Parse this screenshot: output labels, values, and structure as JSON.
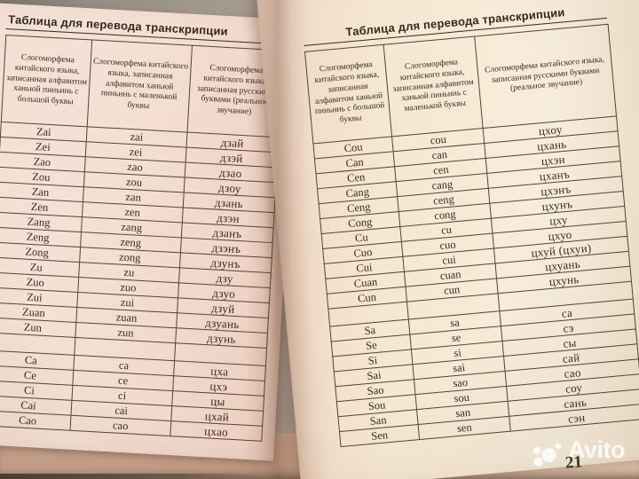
{
  "watermark": {
    "brand": "Avito"
  },
  "page_number": "21",
  "left_page": {
    "title": "Таблица для перевода транскрипции",
    "columns": [
      "Слогоморфема китайского языка, записанная алфавитом ханьюй пиньинь с большой буквы",
      "Слогоморфема китайского языка, записанная алфавитом ханьюй пиньинь с маленькой буквы",
      "Слогоморфема китайского языка, записанная русскими буквами (реальное звучание)"
    ],
    "rows": [
      [
        "Zai",
        "zai",
        "дзай"
      ],
      [
        "Zei",
        "zei",
        "дзэй"
      ],
      [
        "Zao",
        "zao",
        "дзао"
      ],
      [
        "Zou",
        "zou",
        "дзоу"
      ],
      [
        "Zan",
        "zan",
        "дзань"
      ],
      [
        "Zen",
        "zen",
        "дзэн"
      ],
      [
        "Zang",
        "zang",
        "дзанъ"
      ],
      [
        "Zeng",
        "zeng",
        "дзэнъ"
      ],
      [
        "Zong",
        "zong",
        "дзунъ"
      ],
      [
        "Zu",
        "zu",
        "дзу"
      ],
      [
        "Zuo",
        "zuo",
        "дзуо"
      ],
      [
        "Zui",
        "zui",
        "дзуй"
      ],
      [
        "Zuan",
        "zuan",
        "дзуань"
      ],
      [
        "Zun",
        "zun",
        "дзунь"
      ],
      [
        "",
        "",
        ""
      ],
      [
        "Ca",
        "ca",
        "цха"
      ],
      [
        "Ce",
        "ce",
        "цхэ"
      ],
      [
        "Ci",
        "ci",
        "цы"
      ],
      [
        "Cai",
        "cai",
        "цхай"
      ],
      [
        "Cao",
        "cao",
        "цхао"
      ]
    ]
  },
  "right_page": {
    "title": "Таблица для перевода транскрипции",
    "columns": [
      "Слогоморфема китайского языка, записанная алфавитом ханьюй пиньинь с большой буквы",
      "Слогоморфема китайского языка, записанная алфавитом ханьюй пиньинь с маленькой буквы",
      "Слогоморфема китайского языка, записанная русскими буквами (реальное звучание)"
    ],
    "rows": [
      [
        "Cou",
        "cou",
        "цхоу"
      ],
      [
        "Can",
        "can",
        "цхань"
      ],
      [
        "Cen",
        "cen",
        "цхэн"
      ],
      [
        "Cang",
        "cang",
        "цханъ"
      ],
      [
        "Ceng",
        "ceng",
        "цхэнъ"
      ],
      [
        "Cong",
        "cong",
        "цхунъ"
      ],
      [
        "Cu",
        "cu",
        "цху"
      ],
      [
        "Cuo",
        "cuo",
        "цхуо"
      ],
      [
        "Cui",
        "cui",
        "цхуй (цхуи)"
      ],
      [
        "Cuan",
        "cuan",
        "цхуань"
      ],
      [
        "Cun",
        "cun",
        "цхунь"
      ],
      [
        "",
        "",
        ""
      ],
      [
        "Sa",
        "sa",
        "са"
      ],
      [
        "Se",
        "se",
        "сэ"
      ],
      [
        "Si",
        "si",
        "сы"
      ],
      [
        "Sai",
        "sai",
        "сай"
      ],
      [
        "Sao",
        "sao",
        "сао"
      ],
      [
        "Sou",
        "sou",
        "соу"
      ],
      [
        "San",
        "san",
        "сань"
      ],
      [
        "Sen",
        "sen",
        "сэн"
      ]
    ]
  }
}
